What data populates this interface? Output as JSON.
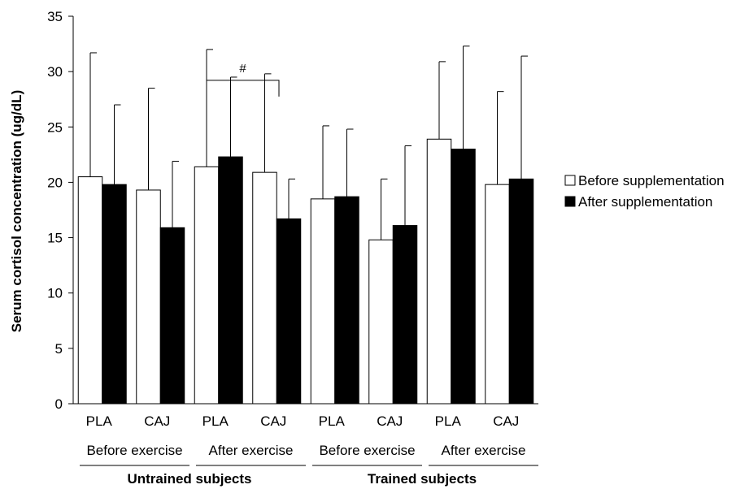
{
  "chart_data": {
    "type": "bar",
    "ylabel": "Serum cortisol concentration (ug/dL)",
    "xlabel": "",
    "ylim": [
      0,
      35
    ],
    "yticks": [
      0,
      5,
      10,
      15,
      20,
      25,
      30,
      35
    ],
    "grid": false,
    "legend_position": "right",
    "categories": [
      "PLA",
      "CAJ",
      "PLA",
      "CAJ",
      "PLA",
      "CAJ",
      "PLA",
      "CAJ"
    ],
    "category_groups": [
      {
        "label": "Before exercise",
        "categories": [
          0,
          1
        ]
      },
      {
        "label": "After exercise",
        "categories": [
          2,
          3
        ]
      },
      {
        "label": "Before exercise",
        "categories": [
          4,
          5
        ]
      },
      {
        "label": "After exercise",
        "categories": [
          6,
          7
        ]
      }
    ],
    "super_groups": [
      {
        "label": "Untrained subjects",
        "categories": [
          0,
          1,
          2,
          3
        ]
      },
      {
        "label": "Trained subjects",
        "categories": [
          4,
          5,
          6,
          7
        ]
      }
    ],
    "series": [
      {
        "name": "Before supplementation",
        "color": "#ffffff",
        "values": [
          20.5,
          19.3,
          21.4,
          20.9,
          18.5,
          14.8,
          23.9,
          19.8
        ],
        "error_upper": [
          31.7,
          28.5,
          32.0,
          29.8,
          25.1,
          20.3,
          30.9,
          28.2
        ]
      },
      {
        "name": "After supplementation",
        "color": "#000000",
        "values": [
          19.8,
          15.9,
          22.3,
          16.7,
          18.7,
          16.1,
          23.0,
          20.3
        ],
        "error_upper": [
          27.0,
          21.9,
          29.5,
          20.3,
          24.8,
          23.3,
          32.3,
          31.4
        ]
      }
    ],
    "annotations": [
      {
        "text": "#",
        "from_category": 2,
        "to_category": 3,
        "y": 32.0
      }
    ]
  }
}
